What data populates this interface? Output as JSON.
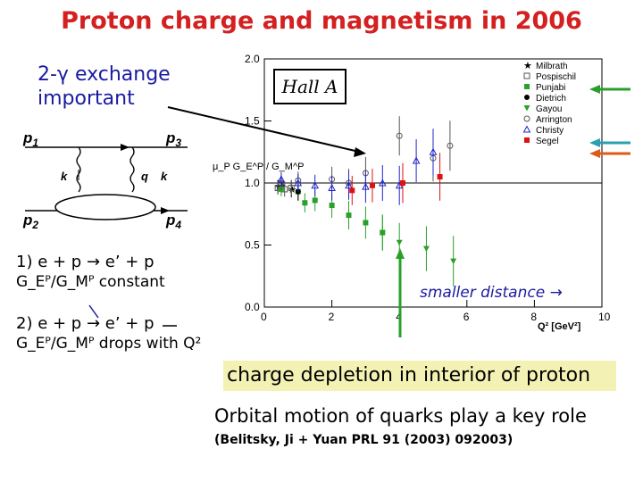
{
  "title": "Proton charge and magnetism in 2006",
  "exchange_note": {
    "line1": "2-γ exchange",
    "line2": "important"
  },
  "feynman": {
    "p1": "p",
    "p1_sub": "1",
    "p2": "p",
    "p2_sub": "2",
    "p3": "p",
    "p3_sub": "3",
    "p4": "p",
    "p4_sub": "4",
    "k_left": "k",
    "q": "q",
    "k_right": "k"
  },
  "eq1": {
    "reaction": "1) e + p → e’ + p",
    "ratio": "G_Eᴾ/G_Mᴾ constant"
  },
  "eq2": {
    "reaction": "2) e + p → e’ + p",
    "ratio": "G_Eᴾ/G_Mᴾ drops with Q²"
  },
  "hall_a": "Hall A",
  "smaller_distance": "smaller distance →",
  "depletion": "charge depletion in interior of proton",
  "orbital": "Orbital motion of quarks play a key role",
  "citation": "(Belitsky, Ji + Yuan PRL 91 (2003) 092003)",
  "colors": {
    "title": "#d42020",
    "green": "#2aa02a",
    "teal": "#2aa0b0",
    "orange": "#e05a1a",
    "blue_text": "#1a1aa0",
    "highlight": "#f4f1b5"
  },
  "chart_data": {
    "type": "scatter",
    "xlabel": "Q² [GeV²]",
    "ylabel": "μ_P G_E^P / G_M^P",
    "xlim": [
      0,
      10
    ],
    "ylim": [
      0,
      2
    ],
    "xticks": [
      0,
      2,
      4,
      6,
      8,
      10
    ],
    "yticks": [
      0.0,
      0.5,
      1.0,
      1.5,
      2.0
    ],
    "reference_line": 1.0,
    "legend_position": "top-right",
    "series": [
      {
        "name": "Milbrath",
        "color": "#000000",
        "marker": "star",
        "points": [
          [
            0.4,
            0.97
          ],
          [
            0.5,
            0.98
          ],
          [
            0.8,
            0.95
          ]
        ]
      },
      {
        "name": "Pospischil",
        "color": "#555555",
        "marker": "square-open",
        "points": [
          [
            0.4,
            0.96
          ],
          [
            0.6,
            0.95
          ],
          [
            0.8,
            0.96
          ]
        ]
      },
      {
        "name": "Punjabi",
        "color": "#2aa02a",
        "marker": "square",
        "points": [
          [
            0.5,
            0.95
          ],
          [
            1.0,
            0.93
          ],
          [
            1.2,
            0.84
          ],
          [
            1.5,
            0.86
          ],
          [
            2.0,
            0.82
          ],
          [
            2.5,
            0.74
          ],
          [
            3.0,
            0.68
          ],
          [
            3.5,
            0.6
          ]
        ]
      },
      {
        "name": "Dietrich",
        "color": "#000000",
        "marker": "circle",
        "points": [
          [
            1.0,
            0.93
          ]
        ]
      },
      {
        "name": "Gayou",
        "color": "#2aa02a",
        "marker": "triangle-down",
        "points": [
          [
            3.5,
            0.6
          ],
          [
            4.0,
            0.52
          ],
          [
            4.8,
            0.47
          ],
          [
            5.6,
            0.37
          ]
        ]
      },
      {
        "name": "Arrington",
        "color": "#555555",
        "marker": "circle-open",
        "points": [
          [
            0.5,
            1.0
          ],
          [
            1.0,
            1.02
          ],
          [
            2.0,
            1.03
          ],
          [
            2.5,
            1.0
          ],
          [
            3.0,
            1.08
          ],
          [
            4.0,
            1.38
          ],
          [
            5.0,
            1.2
          ],
          [
            5.5,
            1.3
          ]
        ]
      },
      {
        "name": "Christy",
        "color": "#2222cc",
        "marker": "triangle-up-open",
        "points": [
          [
            0.5,
            1.03
          ],
          [
            1.0,
            1.0
          ],
          [
            1.5,
            0.98
          ],
          [
            2.0,
            0.96
          ],
          [
            2.5,
            0.98
          ],
          [
            3.0,
            0.97
          ],
          [
            3.5,
            1.0
          ],
          [
            4.0,
            0.98
          ],
          [
            4.5,
            1.18
          ],
          [
            5.0,
            1.25
          ]
        ]
      },
      {
        "name": "Segel",
        "color": "#dd1111",
        "marker": "square",
        "points": [
          [
            2.6,
            0.94
          ],
          [
            3.2,
            0.98
          ],
          [
            4.1,
            1.0
          ],
          [
            5.2,
            1.05
          ]
        ]
      }
    ]
  }
}
